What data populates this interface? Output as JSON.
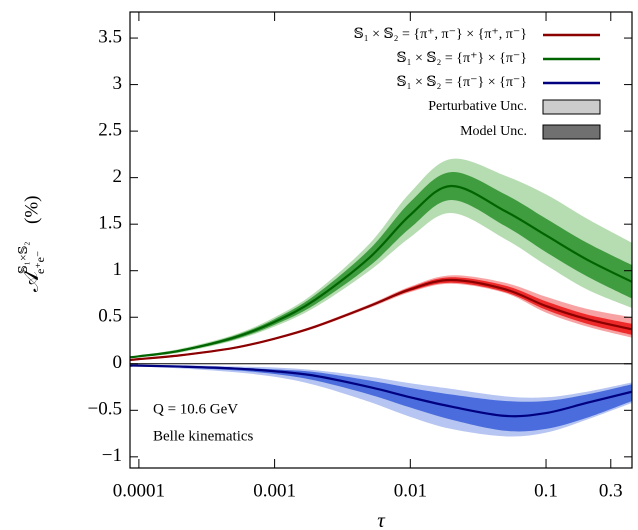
{
  "chart_data": {
    "type": "line",
    "x_label": "τ",
    "y_label": {
      "base": "𝒜",
      "sup": "𝕊₁×𝕊₂",
      "sub": "e⁺e⁻",
      "unit": "(%)"
    },
    "x_log": true,
    "xlim": [
      8.6e-05,
      0.43
    ],
    "ylim": [
      -1.12,
      3.78
    ],
    "xticks": [
      0.0001,
      0.001,
      0.01,
      0.1,
      0.3
    ],
    "yticks": [
      {
        "value": -1,
        "label": "−1"
      },
      {
        "value": -0.5,
        "label": "−0.5"
      },
      0,
      0.5,
      1,
      1.5,
      2,
      2.5,
      3,
      3.5
    ],
    "x": [
      8.6e-05,
      0.0001,
      0.0002,
      0.0005,
      0.001,
      0.002,
      0.005,
      0.01,
      0.02,
      0.05,
      0.1,
      0.2,
      0.43
    ],
    "series": [
      {
        "name": "𝕊₁ × 𝕊₂ = {π⁺, π⁻} × {π⁺, π⁻}",
        "color": "#8b0000",
        "values": [
          0.04,
          0.05,
          0.09,
          0.17,
          0.27,
          0.4,
          0.62,
          0.8,
          0.9,
          0.8,
          0.62,
          0.48,
          0.37
        ],
        "model_unc": {
          "color": "#ee2a2a",
          "lower": [
            0.035,
            0.045,
            0.085,
            0.165,
            0.265,
            0.39,
            0.61,
            0.78,
            0.87,
            0.77,
            0.58,
            0.43,
            0.31
          ],
          "upper": [
            0.045,
            0.055,
            0.095,
            0.175,
            0.275,
            0.41,
            0.63,
            0.82,
            0.93,
            0.84,
            0.67,
            0.53,
            0.43
          ]
        },
        "perturbative_unc": {
          "color": "#f7a3a3",
          "lower": [
            0.03,
            0.04,
            0.08,
            0.16,
            0.26,
            0.385,
            0.6,
            0.77,
            0.86,
            0.76,
            0.55,
            0.4,
            0.28
          ],
          "upper": [
            0.05,
            0.06,
            0.1,
            0.18,
            0.28,
            0.415,
            0.64,
            0.83,
            0.95,
            0.87,
            0.72,
            0.59,
            0.5
          ]
        }
      },
      {
        "name": "𝕊₁ × 𝕊₂ = {π⁺} × {π⁻}",
        "color": "#006400",
        "values": [
          0.07,
          0.08,
          0.14,
          0.28,
          0.45,
          0.69,
          1.14,
          1.6,
          1.91,
          1.64,
          1.38,
          1.12,
          0.88
        ],
        "model_unc": {
          "color": "#3f9c3f",
          "lower": [
            0.065,
            0.075,
            0.13,
            0.26,
            0.42,
            0.64,
            1.05,
            1.46,
            1.76,
            1.48,
            1.2,
            0.94,
            0.7
          ],
          "upper": [
            0.075,
            0.085,
            0.15,
            0.3,
            0.48,
            0.74,
            1.23,
            1.74,
            2.06,
            1.82,
            1.56,
            1.3,
            1.06
          ]
        },
        "perturbative_unc": {
          "color": "#b6dcb1",
          "lower": [
            0.06,
            0.07,
            0.12,
            0.25,
            0.4,
            0.61,
            1.0,
            1.36,
            1.62,
            1.34,
            1.06,
            0.8,
            0.6
          ],
          "upper": [
            0.08,
            0.09,
            0.16,
            0.31,
            0.5,
            0.77,
            1.29,
            1.84,
            2.2,
            2.02,
            1.82,
            1.56,
            1.3
          ]
        }
      },
      {
        "name": "𝕊₁ × 𝕊₂ = {π⁻} × {π⁻}",
        "color": "#000080",
        "values": [
          -0.02,
          -0.02,
          -0.03,
          -0.05,
          -0.08,
          -0.13,
          -0.25,
          -0.36,
          -0.46,
          -0.56,
          -0.53,
          -0.42,
          -0.3
        ],
        "model_unc": {
          "color": "#4a6cdc",
          "lower": [
            -0.025,
            -0.025,
            -0.04,
            -0.07,
            -0.11,
            -0.18,
            -0.33,
            -0.47,
            -0.6,
            -0.72,
            -0.7,
            -0.58,
            -0.4
          ],
          "upper": [
            -0.015,
            -0.015,
            -0.02,
            -0.04,
            -0.06,
            -0.09,
            -0.18,
            -0.26,
            -0.33,
            -0.4,
            -0.4,
            -0.33,
            -0.22
          ]
        },
        "perturbative_unc": {
          "color": "#b6c5f2",
          "lower": [
            -0.03,
            -0.03,
            -0.05,
            -0.09,
            -0.14,
            -0.23,
            -0.41,
            -0.57,
            -0.7,
            -0.78,
            -0.74,
            -0.6,
            -0.42
          ],
          "upper": [
            -0.01,
            -0.01,
            -0.015,
            -0.03,
            -0.04,
            -0.07,
            -0.14,
            -0.21,
            -0.27,
            -0.35,
            -0.36,
            -0.3,
            -0.2
          ]
        }
      }
    ],
    "band_legend": {
      "perturbative_unc": {
        "name": "Perturbative Unc.",
        "color": "#cccccc"
      },
      "model_unc": {
        "name": "Model Unc.",
        "color": "#707070"
      }
    },
    "annotations": [
      "Q = 10.6 GeV",
      "Belle kinematics"
    ]
  }
}
